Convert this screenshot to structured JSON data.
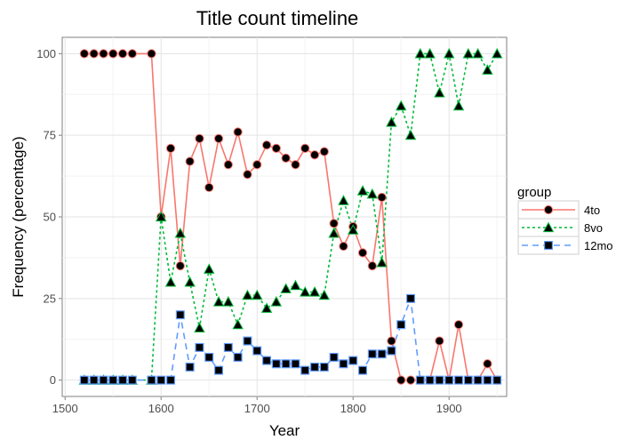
{
  "chart_data": {
    "type": "line",
    "title": "Title count timeline",
    "xlabel": "Year",
    "ylabel": "Frequency (percentage)",
    "xlim": [
      1497,
      1960
    ],
    "ylim": [
      -5,
      105
    ],
    "xticks": [
      1500,
      1600,
      1700,
      1800,
      1900
    ],
    "yticks": [
      0,
      25,
      50,
      75,
      100
    ],
    "grid": true,
    "legend": {
      "title": "group",
      "position": "right"
    },
    "x": [
      1520,
      1530,
      1540,
      1550,
      1560,
      1570,
      1590,
      1600,
      1610,
      1620,
      1630,
      1640,
      1650,
      1660,
      1670,
      1680,
      1690,
      1700,
      1710,
      1720,
      1730,
      1740,
      1750,
      1760,
      1770,
      1780,
      1790,
      1800,
      1810,
      1820,
      1830,
      1840,
      1850,
      1860,
      1870,
      1880,
      1890,
      1900,
      1910,
      1920,
      1930,
      1940,
      1950
    ],
    "series": [
      {
        "name": "4to",
        "color": "#F8766D",
        "marker": "circle",
        "dash": "solid",
        "values": [
          100,
          100,
          100,
          100,
          100,
          100,
          100,
          50,
          71,
          35,
          67,
          74,
          59,
          74,
          66,
          76,
          63,
          66,
          72,
          71,
          68,
          66,
          71,
          69,
          70,
          48,
          41,
          47,
          39,
          35,
          56,
          12,
          0,
          0,
          0,
          0,
          12,
          0,
          17,
          0,
          0,
          5,
          0
        ]
      },
      {
        "name": "8vo",
        "color": "#00BA38",
        "marker": "triangle",
        "dash": "dotted",
        "values": [
          0,
          0,
          0,
          0,
          0,
          0,
          0,
          50,
          30,
          45,
          30,
          16,
          34,
          24,
          24,
          17,
          26,
          26,
          22,
          24,
          28,
          29,
          27,
          27,
          26,
          45,
          55,
          46,
          58,
          57,
          36,
          79,
          84,
          75,
          100,
          100,
          88,
          100,
          84,
          100,
          100,
          95,
          100
        ]
      },
      {
        "name": "12mo",
        "color": "#619CFF",
        "marker": "square",
        "dash": "dashed",
        "values": [
          0,
          0,
          0,
          0,
          0,
          0,
          0,
          0,
          0,
          20,
          4,
          10,
          7,
          3,
          10,
          7,
          12,
          9,
          6,
          5,
          5,
          5,
          3,
          4,
          4,
          7,
          5,
          6,
          3,
          8,
          8,
          9,
          17,
          25,
          0,
          0,
          0,
          0,
          0,
          0,
          0,
          0,
          0
        ]
      }
    ]
  }
}
